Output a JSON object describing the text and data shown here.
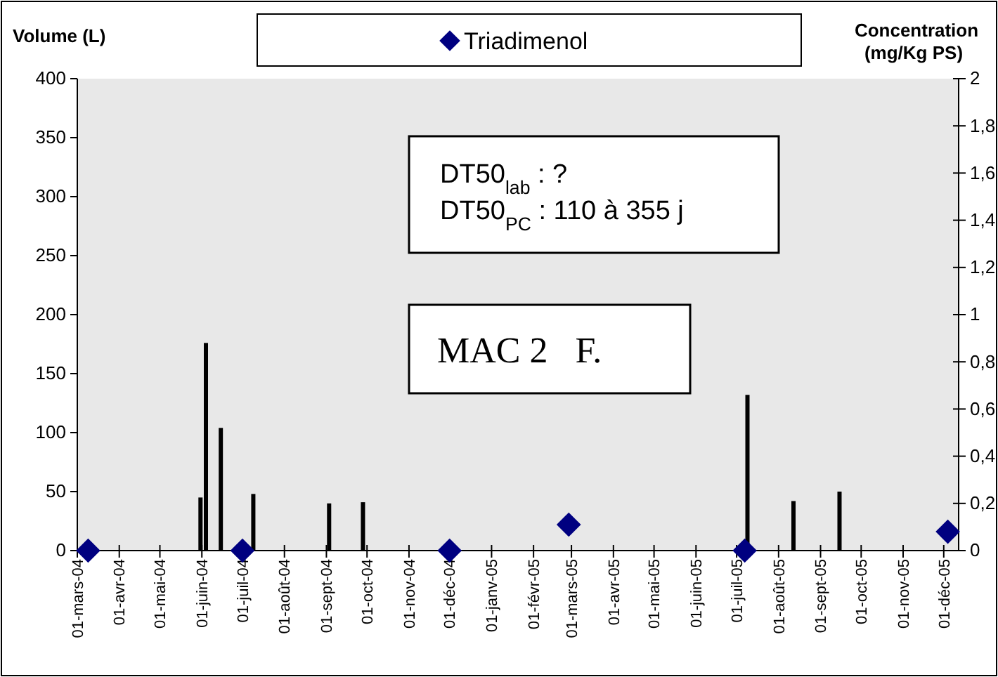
{
  "chart_data": {
    "type": "bar",
    "ylabel": "Volume (L)",
    "y2label": "Concentration (mg/Kg PS)",
    "xlim": [
      "2004-03-01",
      "2005-12-12"
    ],
    "xticks": [
      {
        "value": "2004-03-01",
        "label": "01-mars-04"
      },
      {
        "value": "2004-04-01",
        "label": "01-avr-04"
      },
      {
        "value": "2004-05-01",
        "label": "01-mai-04"
      },
      {
        "value": "2004-06-01",
        "label": "01-juin-04"
      },
      {
        "value": "2004-07-01",
        "label": "01-juil-04"
      },
      {
        "value": "2004-08-01",
        "label": "01-août-04"
      },
      {
        "value": "2004-09-01",
        "label": "01-sept-04"
      },
      {
        "value": "2004-10-01",
        "label": "01-oct-04"
      },
      {
        "value": "2004-11-01",
        "label": "01-nov-04"
      },
      {
        "value": "2004-12-01",
        "label": "01-déc-04"
      },
      {
        "value": "2005-01-01",
        "label": "01-janv-05"
      },
      {
        "value": "2005-02-01",
        "label": "01-févr-05"
      },
      {
        "value": "2005-03-01",
        "label": "01-mars-05"
      },
      {
        "value": "2005-04-01",
        "label": "01-avr-05"
      },
      {
        "value": "2005-05-01",
        "label": "01-mai-05"
      },
      {
        "value": "2005-06-01",
        "label": "01-juin-05"
      },
      {
        "value": "2005-07-01",
        "label": "01-juil-05"
      },
      {
        "value": "2005-08-01",
        "label": "01-août-05"
      },
      {
        "value": "2005-09-01",
        "label": "01-sept-05"
      },
      {
        "value": "2005-10-01",
        "label": "01-oct-05"
      },
      {
        "value": "2005-11-01",
        "label": "01-nov-05"
      },
      {
        "value": "2005-12-01",
        "label": "01-déc-05"
      }
    ],
    "ylim": [
      0,
      400
    ],
    "yticks": [
      0,
      50,
      100,
      150,
      200,
      250,
      300,
      350,
      400
    ],
    "y2lim": [
      0,
      2
    ],
    "y2ticks": [
      0,
      {
        "value": 0.2,
        "label": "0,2"
      },
      {
        "value": 0.4,
        "label": "0,4"
      },
      {
        "value": 0.6,
        "label": "0,6"
      },
      {
        "value": 0.8,
        "label": "0,8"
      },
      1,
      {
        "value": 1.2,
        "label": "1,2"
      },
      {
        "value": 1.4,
        "label": "1,4"
      },
      {
        "value": 1.6,
        "label": "1,6"
      },
      {
        "value": 1.8,
        "label": "1,8"
      },
      2
    ],
    "series": [
      {
        "color": "#000000",
        "x": [
          "2004-05-31",
          "2004-06-04",
          "2004-06-15",
          "2004-07-09",
          "2004-09-03",
          "2004-09-28",
          "2005-07-09",
          "2005-08-12",
          "2005-09-15"
        ],
        "values": [
          45,
          176,
          104,
          48,
          40,
          41,
          132,
          42,
          50
        ]
      },
      {
        "type": "scatter",
        "name": "Triadimenol",
        "axis": "y2",
        "marker": "diamond",
        "color": "#000080",
        "x": [
          "2004-03-09",
          "2004-07-01",
          "2004-12-01",
          "2005-02-27",
          "2005-07-07",
          "2005-12-04"
        ],
        "values": [
          0,
          0,
          0,
          0.11,
          0,
          0.08
        ]
      }
    ],
    "legend": "top",
    "grid": false,
    "annotations": [
      "DT50$_{lab}$ : ?",
      "DT50$_{PC}$ : 110 à 355 j",
      "MAC 2   F."
    ]
  }
}
